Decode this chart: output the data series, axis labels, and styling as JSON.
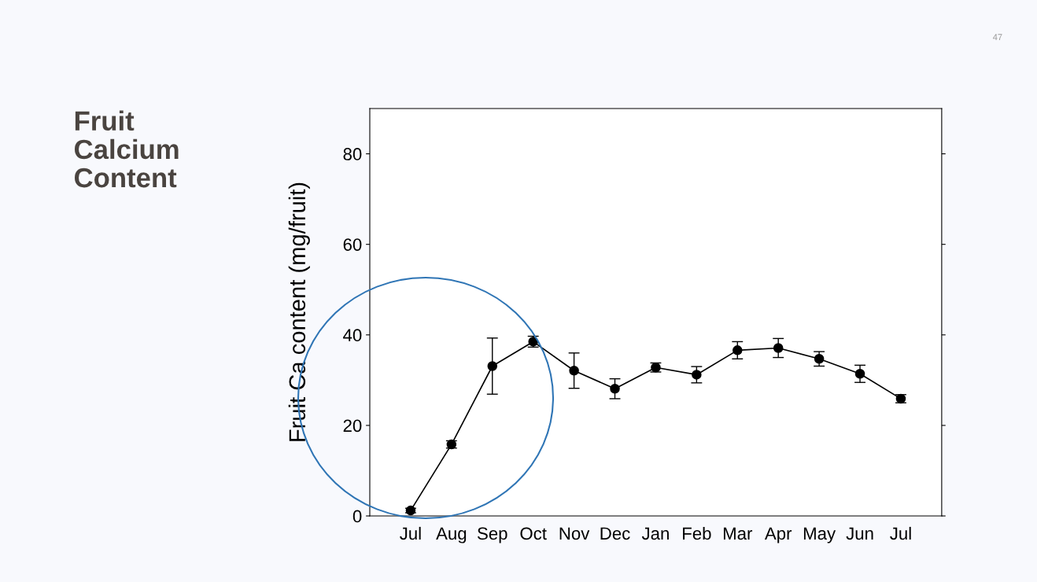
{
  "chart_data": {
    "type": "line",
    "title": "Fruit\nCalcium\nContent",
    "ylabel": "Fruit Ca content (mg/fruit)",
    "categories": [
      "Jul",
      "Aug",
      "Sep",
      "Oct",
      "Nov",
      "Dec",
      "Jan",
      "Feb",
      "Mar",
      "Apr",
      "May",
      "Jun",
      "Jul"
    ],
    "series": [
      {
        "color": "#000000",
        "values": [
          1.2,
          15.8,
          33.1,
          38.5,
          32.1,
          28.1,
          32.8,
          31.2,
          36.6,
          37.1,
          34.7,
          31.4,
          25.9
        ],
        "errors": [
          0.5,
          0.8,
          6.2,
          1.2,
          3.9,
          2.2,
          1.0,
          1.8,
          1.9,
          2.1,
          1.6,
          1.9,
          0.9
        ]
      }
    ],
    "ylim": [
      0,
      90
    ],
    "yticks": [
      0,
      20,
      40,
      60,
      80
    ],
    "marker": "circle",
    "line_style": "solid",
    "grid": false,
    "legend": false,
    "annotations": [
      "47"
    ]
  }
}
